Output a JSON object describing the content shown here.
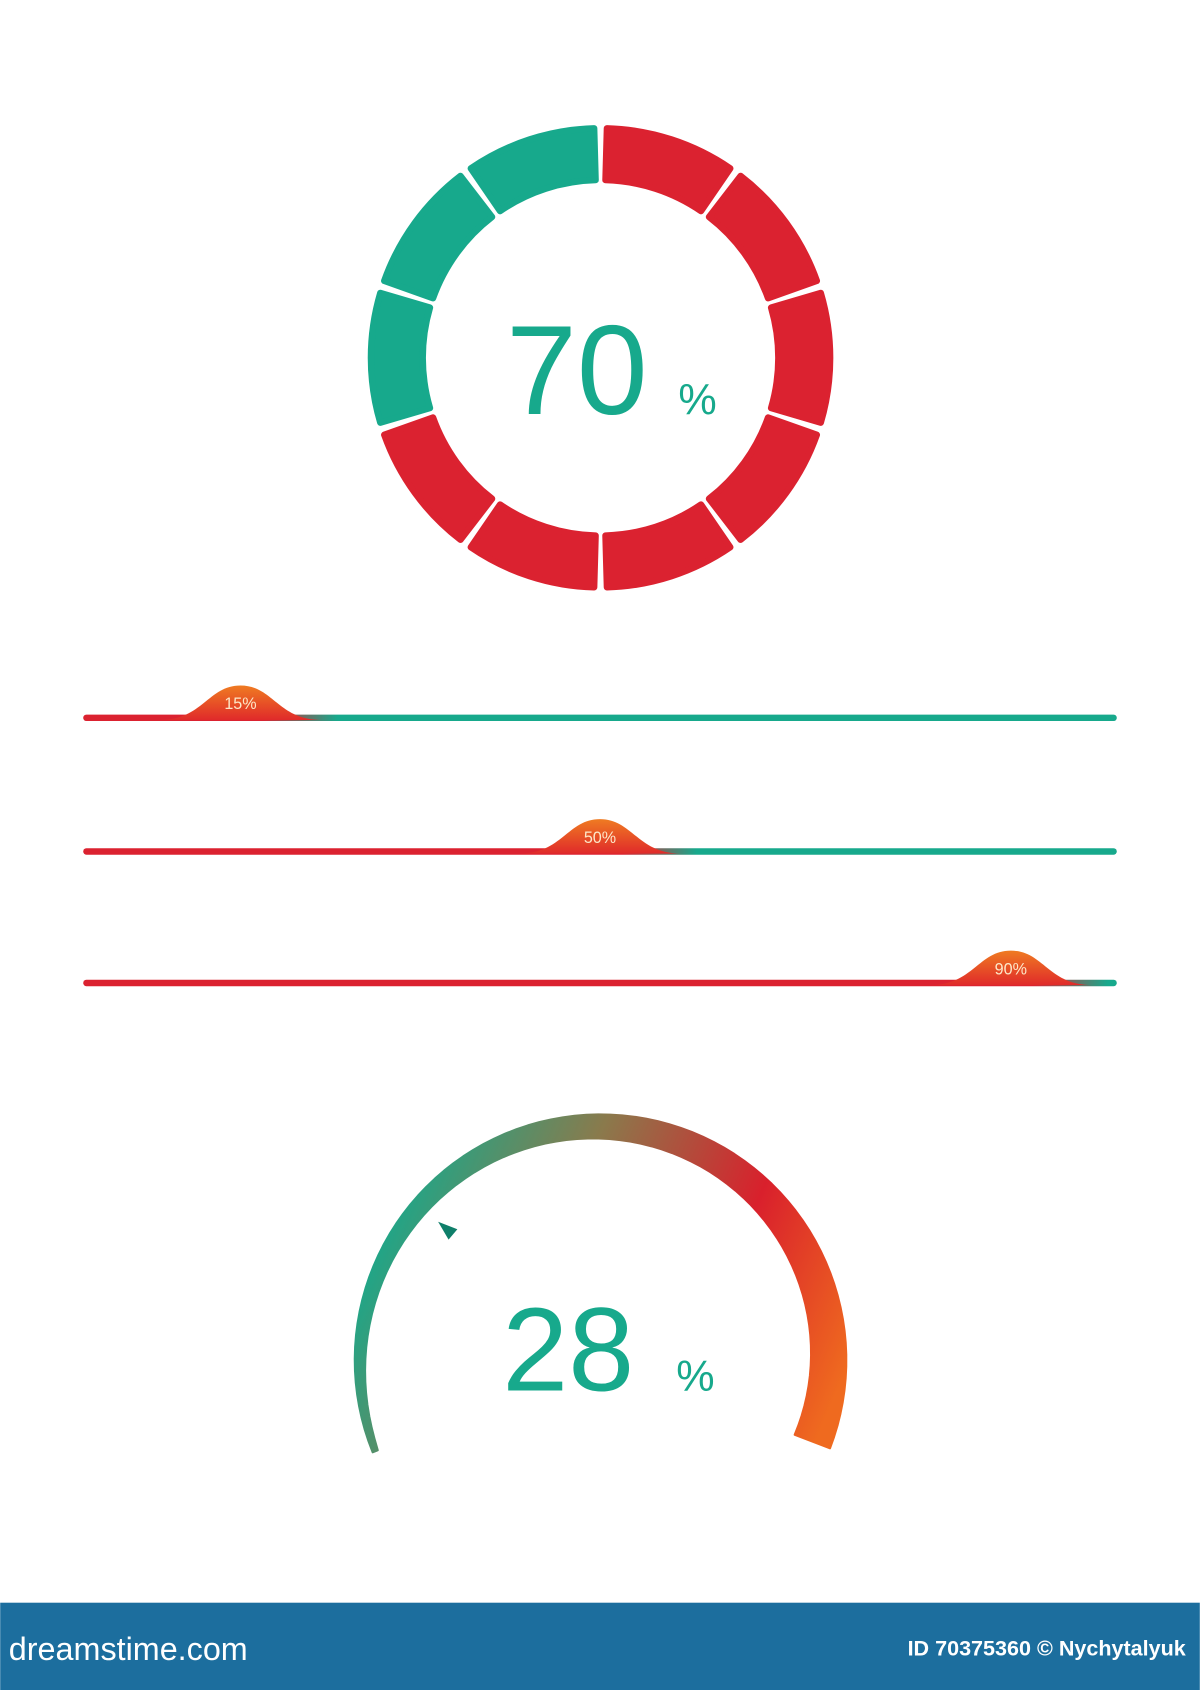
{
  "ring": {
    "value": 70,
    "unit": "%"
  },
  "sliders": [
    {
      "value": 15,
      "label": "15%"
    },
    {
      "value": 50,
      "label": "50%"
    },
    {
      "value": 90,
      "label": "90%"
    }
  ],
  "gauge": {
    "value": 28,
    "unit": "%"
  },
  "footer": {
    "brand": "dreamstime.com",
    "credit": "ID 70375360 © Nychytalyuk"
  }
}
